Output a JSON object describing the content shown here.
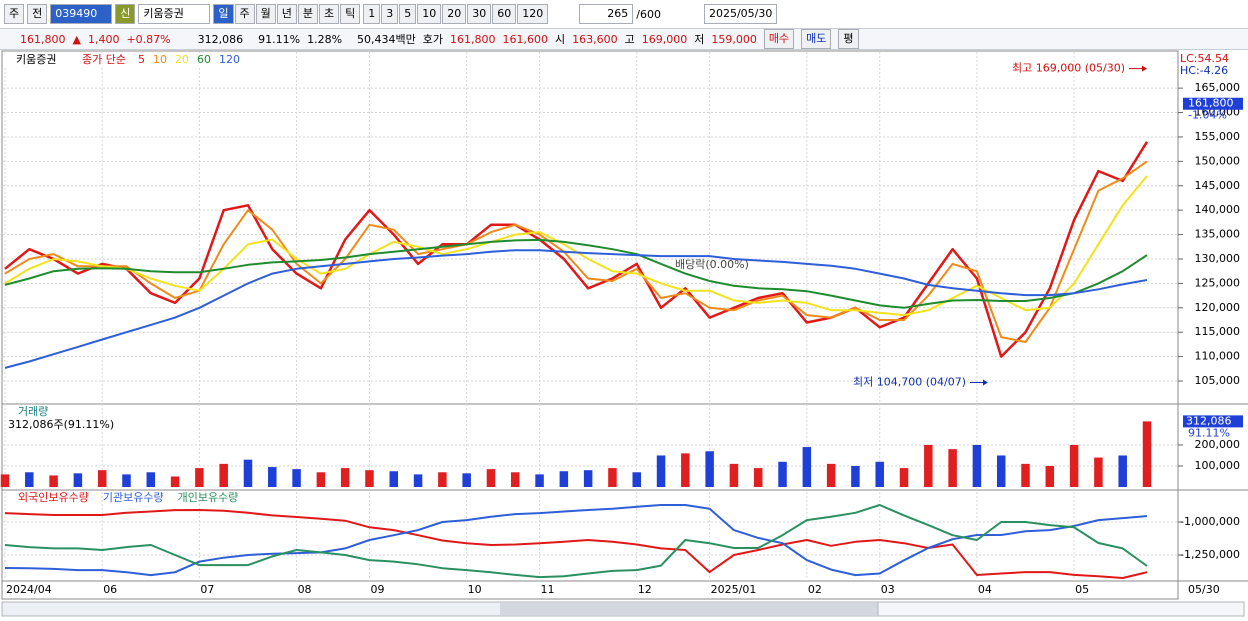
{
  "toolbar": {
    "market": "주",
    "prev": "전",
    "code": "039490",
    "badge": "신",
    "name": "키움증권",
    "periods": [
      "일",
      "주",
      "월",
      "년",
      "분",
      "초",
      "틱"
    ],
    "intervals": [
      "1",
      "3",
      "5",
      "10",
      "20",
      "30",
      "60",
      "120"
    ],
    "count": 265,
    "max": "/600",
    "date": "2025/05/30"
  },
  "info_bar": {
    "price": "161,800",
    "change": "1,400",
    "rate": "+0.87%",
    "volume": "312,086",
    "volume_ratio": "91.11%",
    "turnover": "1.28%",
    "amount": "50,434백만",
    "quote_label": "호가",
    "ask": "161,800",
    "bid": "161,600",
    "open_label": "시",
    "open": "163,600",
    "high_label": "고",
    "high": "169,000",
    "low_label": "저",
    "low": "159,000",
    "buy": "매수",
    "sell": "매도",
    "avg": "평"
  },
  "chart_data": [
    {
      "type": "line",
      "title": "키움증권",
      "legend_title": "종가 단순",
      "lc": "LC:54.54",
      "hc": "HC:-4.26",
      "current": {
        "value": 161800,
        "label": "161,800"
      },
      "current_rate": "-1.04%",
      "annotations": [
        {
          "text": "최고 169,000 (05/30)",
          "value": 169000,
          "color": "#d01010"
        },
        {
          "text": "최저 104,700 (04/07)",
          "value": 104700,
          "color": "#1030b0"
        }
      ],
      "note": "배당락(0.00%)",
      "categories": [
        "2024/04",
        null,
        null,
        null,
        "06",
        null,
        null,
        null,
        "07",
        null,
        null,
        null,
        "08",
        null,
        null,
        "09",
        null,
        null,
        null,
        "10",
        null,
        null,
        "11",
        null,
        null,
        null,
        "12",
        null,
        null,
        "2025/01",
        null,
        null,
        null,
        "02",
        null,
        null,
        "03",
        null,
        null,
        null,
        "04",
        null,
        null,
        null,
        "05",
        null,
        null,
        null
      ],
      "last_date": "05/30",
      "ylim": [
        100500,
        172400
      ],
      "yticks": [
        {
          "value": 105000,
          "label": "105,000"
        },
        {
          "value": 110000,
          "label": "110,000"
        },
        {
          "value": 115000,
          "label": "115,000"
        },
        {
          "value": 120000,
          "label": "120,000"
        },
        {
          "value": 125000,
          "label": "125,000"
        },
        {
          "value": 130000,
          "label": "130,000"
        },
        {
          "value": 135000,
          "label": "135,000"
        },
        {
          "value": 140000,
          "label": "140,000"
        },
        {
          "value": 145000,
          "label": "145,000"
        },
        {
          "value": 150000,
          "label": "150,000"
        },
        {
          "value": 155000,
          "label": "155,000"
        },
        {
          "value": 160000,
          "label": "160,000"
        },
        {
          "value": 165000,
          "label": "165,000"
        }
      ],
      "grid": true,
      "series": [
        {
          "name": "5",
          "color": "#e01818",
          "width": 2.5,
          "values": [
            128000,
            132000,
            130000,
            127000,
            129000,
            128000,
            123000,
            121000,
            126000,
            140000,
            141000,
            132000,
            127000,
            124000,
            134000,
            140000,
            135000,
            129000,
            133000,
            133000,
            137000,
            137000,
            134000,
            130000,
            124000,
            126000,
            129000,
            120000,
            124000,
            118000,
            120000,
            122000,
            123000,
            117000,
            118000,
            120000,
            116000,
            118000,
            125000,
            132000,
            126000,
            110000,
            115000,
            124000,
            138000,
            148000,
            146000,
            154000
          ]
        },
        {
          "name": "10",
          "color": "#f08a18",
          "width": 2,
          "values": [
            127000,
            130000,
            131000,
            128500,
            128500,
            128500,
            125000,
            122000,
            123500,
            133000,
            140000,
            136000,
            129000,
            125000,
            130000,
            137000,
            136000,
            131000,
            132000,
            133000,
            135500,
            137000,
            135000,
            131500,
            126000,
            125500,
            128000,
            122000,
            123000,
            120000,
            119500,
            121500,
            122500,
            118500,
            118000,
            120000,
            117500,
            117500,
            122500,
            129000,
            127500,
            114000,
            113000,
            120000,
            132000,
            144000,
            146500,
            150000
          ]
        },
        {
          "name": "20",
          "color": "#f2e21a",
          "width": 2,
          "values": [
            125000,
            128000,
            130000,
            129500,
            128500,
            128000,
            126000,
            124500,
            123500,
            128000,
            133000,
            134000,
            130000,
            127000,
            128000,
            131000,
            133500,
            132500,
            131000,
            132000,
            133500,
            135000,
            135500,
            133000,
            130000,
            127500,
            127000,
            125000,
            123500,
            123500,
            121500,
            121000,
            121500,
            121000,
            119500,
            119500,
            119000,
            118500,
            119500,
            122000,
            124500,
            122000,
            119500,
            120000,
            125000,
            133000,
            141000,
            147000
          ]
        },
        {
          "name": "60",
          "color": "#1e8c2e",
          "width": 2,
          "values": [
            124700,
            126000,
            127500,
            128000,
            128100,
            128000,
            127500,
            127300,
            127300,
            128000,
            128800,
            129300,
            129500,
            129800,
            130300,
            131000,
            131500,
            132000,
            132500,
            133000,
            133500,
            133800,
            133900,
            133500,
            132800,
            132000,
            131000,
            129000,
            127000,
            125500,
            124500,
            124000,
            123800,
            123400,
            122500,
            121500,
            120500,
            120000,
            120800,
            121500,
            121600,
            121400,
            121400,
            122000,
            123000,
            125000,
            127500,
            130800
          ]
        },
        {
          "name": "120",
          "color": "#2e5fd8",
          "width": 2,
          "values": [
            107700,
            109000,
            110500,
            112000,
            113500,
            115000,
            116500,
            118000,
            120000,
            122500,
            125000,
            127000,
            128000,
            128500,
            129000,
            129500,
            130000,
            130300,
            130700,
            131000,
            131500,
            131800,
            131800,
            131500,
            131200,
            131000,
            130800,
            130600,
            130600,
            130600,
            130000,
            129700,
            129400,
            129000,
            128600,
            128000,
            127000,
            126000,
            124700,
            124000,
            123500,
            123000,
            122600,
            122600,
            123000,
            123800,
            124800,
            125700
          ]
        }
      ]
    },
    {
      "type": "bar",
      "title": "거래량",
      "subtitle": "312,086주(91.11%)",
      "current_label": "312,086",
      "current_rate": "91.11%",
      "ylim": [
        0,
        390000
      ],
      "yticks": [
        {
          "value": 100000,
          "label": "100,000"
        },
        {
          "value": 200000,
          "label": "200,000"
        }
      ],
      "values": [
        60000,
        70000,
        55000,
        65000,
        80000,
        60000,
        70000,
        50000,
        90000,
        110000,
        130000,
        95000,
        85000,
        70000,
        90000,
        80000,
        75000,
        60000,
        70000,
        65000,
        85000,
        70000,
        60000,
        75000,
        80000,
        90000,
        70000,
        150000,
        160000,
        170000,
        110000,
        90000,
        120000,
        190000,
        110000,
        100000,
        120000,
        90000,
        200000,
        180000,
        200000,
        150000,
        110000,
        100000,
        200000,
        140000,
        150000,
        312086
      ],
      "colors": [
        "#e02020",
        "#1f3fd9",
        "#e02020",
        "#1f3fd9",
        "#e02020",
        "#1f3fd9",
        "#1f3fd9",
        "#e02020",
        "#e02020",
        "#e02020",
        "#1f3fd9",
        "#1f3fd9",
        "#1f3fd9",
        "#e02020",
        "#e02020",
        "#e02020",
        "#1f3fd9",
        "#1f3fd9",
        "#e02020",
        "#1f3fd9",
        "#e02020",
        "#e02020",
        "#1f3fd9",
        "#1f3fd9",
        "#1f3fd9",
        "#e02020",
        "#1f3fd9",
        "#1f3fd9",
        "#e02020",
        "#1f3fd9",
        "#e02020",
        "#e02020",
        "#1f3fd9",
        "#1f3fd9",
        "#e02020",
        "#1f3fd9",
        "#1f3fd9",
        "#e02020",
        "#e02020",
        "#e02020",
        "#1f3fd9",
        "#1f3fd9",
        "#e02020",
        "#e02020",
        "#e02020",
        "#e02020",
        "#1f3fd9",
        "#e02020"
      ]
    },
    {
      "type": "line",
      "ylim": [
        -1439000,
        -765000
      ],
      "yticks": [
        {
          "value": -1000000,
          "label": "-1,000,000"
        },
        {
          "value": -1250000,
          "label": "-1,250,000"
        }
      ],
      "series": [
        {
          "name": "외국인보유수량",
          "color": "#e01818",
          "width": 2,
          "values": [
            -932000,
            -940000,
            -947000,
            -947000,
            -947000,
            -930000,
            -920000,
            -910000,
            -909000,
            -915000,
            -930000,
            -950000,
            -962000,
            -975000,
            -990000,
            -1040000,
            -1061000,
            -1100000,
            -1140000,
            -1160000,
            -1174000,
            -1170000,
            -1160000,
            -1150000,
            -1136000,
            -1150000,
            -1170000,
            -1200000,
            -1212000,
            -1379000,
            -1250000,
            -1212000,
            -1170000,
            -1136000,
            -1180000,
            -1150000,
            -1136000,
            -1160000,
            -1197000,
            -1170000,
            -1401000,
            -1390000,
            -1379000,
            -1379000,
            -1400000,
            -1410000,
            -1424000,
            -1380000
          ]
        },
        {
          "name": "기관보유수량",
          "color": "#2e5fd8",
          "width": 2,
          "values": [
            -1348000,
            -1350000,
            -1355000,
            -1364000,
            -1364000,
            -1380000,
            -1402000,
            -1380000,
            -1300000,
            -1270000,
            -1250000,
            -1240000,
            -1235000,
            -1230000,
            -1200000,
            -1136000,
            -1100000,
            -1061000,
            -1000000,
            -985000,
            -960000,
            -940000,
            -932000,
            -920000,
            -909000,
            -900000,
            -885000,
            -871000,
            -871000,
            -900000,
            -1061000,
            -1120000,
            -1160000,
            -1288000,
            -1360000,
            -1402000,
            -1390000,
            -1290000,
            -1197000,
            -1130000,
            -1098000,
            -1098000,
            -1070000,
            -1061000,
            -1030000,
            -985000,
            -970000,
            -955000
          ]
        },
        {
          "name": "개인보유수량",
          "color": "#2a9060",
          "width": 2,
          "values": [
            -1174000,
            -1190000,
            -1200000,
            -1200000,
            -1212000,
            -1190000,
            -1174000,
            -1250000,
            -1326000,
            -1326000,
            -1326000,
            -1260000,
            -1212000,
            -1230000,
            -1250000,
            -1288000,
            -1300000,
            -1320000,
            -1350000,
            -1364000,
            -1380000,
            -1400000,
            -1417000,
            -1410000,
            -1390000,
            -1370000,
            -1364000,
            -1330000,
            -1136000,
            -1160000,
            -1197000,
            -1197000,
            -1100000,
            -985000,
            -960000,
            -930000,
            -871000,
            -950000,
            -1023000,
            -1100000,
            -1136000,
            -1000000,
            -1000000,
            -1023000,
            -1040000,
            -1159000,
            -1200000,
            -1333000
          ]
        }
      ]
    }
  ]
}
